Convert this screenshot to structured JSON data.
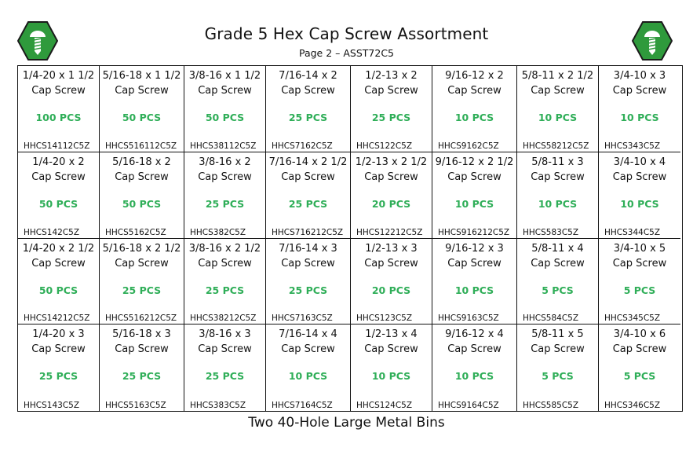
{
  "header": {
    "title": "Grade 5 Hex Cap Screw Assortment",
    "subtitle": "Page 2 – ASST72C5"
  },
  "footer": {
    "text": "Two 40-Hole Large Metal Bins"
  },
  "colors": {
    "logo_green": "#2f9a3c",
    "logo_dark": "#1b1b1b",
    "qty_green": "#2fae58"
  },
  "rows": [
    [
      {
        "size": "1/4-20 x 1 1/2",
        "type": "Cap Screw",
        "qty": "100 PCS",
        "part": "HHCS14112C5Z"
      },
      {
        "size": "5/16-18 x 1 1/2",
        "type": "Cap Screw",
        "qty": "50 PCS",
        "part": "HHCS516112C5Z"
      },
      {
        "size": "3/8-16 x 1 1/2",
        "type": "Cap Screw",
        "qty": "50 PCS",
        "part": "HHCS38112C5Z"
      },
      {
        "size": "7/16-14 x 2",
        "type": "Cap Screw",
        "qty": "25 PCS",
        "part": "HHCS7162C5Z"
      },
      {
        "size": "1/2-13 x 2",
        "type": "Cap Screw",
        "qty": "25 PCS",
        "part": "HHCS122C5Z"
      },
      {
        "size": "9/16-12 x 2",
        "type": "Cap Screw",
        "qty": "10 PCS",
        "part": "HHCS9162C5Z"
      },
      {
        "size": "5/8-11 x 2 1/2",
        "type": "Cap Screw",
        "qty": "10 PCS",
        "part": "HHCS58212C5Z"
      },
      {
        "size": "3/4-10 x 3",
        "type": "Cap Screw",
        "qty": "10 PCS",
        "part": "HHCS343C5Z"
      }
    ],
    [
      {
        "size": "1/4-20 x 2",
        "type": "Cap Screw",
        "qty": "50 PCS",
        "part": "HHCS142C5Z"
      },
      {
        "size": "5/16-18 x 2",
        "type": "Cap Screw",
        "qty": "50 PCS",
        "part": "HHCS5162C5Z"
      },
      {
        "size": "3/8-16 x 2",
        "type": "Cap Screw",
        "qty": "25 PCS",
        "part": "HHCS382C5Z"
      },
      {
        "size": "7/16-14 x 2 1/2",
        "type": "Cap Screw",
        "qty": "25 PCS",
        "part": "HHCS716212C5Z"
      },
      {
        "size": "1/2-13 x 2 1/2",
        "type": "Cap Screw",
        "qty": "20 PCS",
        "part": "HHCS12212C5Z"
      },
      {
        "size": "9/16-12 x 2 1/2",
        "type": "Cap Screw",
        "qty": "10 PCS",
        "part": "HHCS916212C5Z"
      },
      {
        "size": "5/8-11 x 3",
        "type": "Cap Screw",
        "qty": "10 PCS",
        "part": "HHCS583C5Z"
      },
      {
        "size": "3/4-10 x 4",
        "type": "Cap Screw",
        "qty": "10 PCS",
        "part": "HHCS344C5Z"
      }
    ],
    [
      {
        "size": "1/4-20 x 2 1/2",
        "type": "Cap Screw",
        "qty": "50 PCS",
        "part": "HHCS14212C5Z"
      },
      {
        "size": "5/16-18 x 2 1/2",
        "type": "Cap Screw",
        "qty": "25 PCS",
        "part": "HHCS516212C5Z"
      },
      {
        "size": "3/8-16 x 2 1/2",
        "type": "Cap Screw",
        "qty": "25 PCS",
        "part": "HHCS38212C5Z"
      },
      {
        "size": "7/16-14 x 3",
        "type": "Cap Screw",
        "qty": "25 PCS",
        "part": "HHCS7163C5Z"
      },
      {
        "size": "1/2-13 x 3",
        "type": "Cap Screw",
        "qty": "20 PCS",
        "part": "HHCS123C5Z"
      },
      {
        "size": "9/16-12 x 3",
        "type": "Cap Screw",
        "qty": "10 PCS",
        "part": "HHCS9163C5Z"
      },
      {
        "size": "5/8-11 x 4",
        "type": "Cap Screw",
        "qty": "5 PCS",
        "part": "HHCS584C5Z"
      },
      {
        "size": "3/4-10 x 5",
        "type": "Cap Screw",
        "qty": "5 PCS",
        "part": "HHCS345C5Z"
      }
    ],
    [
      {
        "size": "1/4-20 x 3",
        "type": "Cap Screw",
        "qty": "25 PCS",
        "part": "HHCS143C5Z"
      },
      {
        "size": "5/16-18 x 3",
        "type": "Cap Screw",
        "qty": "25 PCS",
        "part": "HHCS5163C5Z"
      },
      {
        "size": "3/8-16 x 3",
        "type": "Cap Screw",
        "qty": "25 PCS",
        "part": "HHCS383C5Z"
      },
      {
        "size": "7/16-14 x 4",
        "type": "Cap Screw",
        "qty": "10 PCS",
        "part": "HHCS7164C5Z"
      },
      {
        "size": "1/2-13 x 4",
        "type": "Cap Screw",
        "qty": "10 PCS",
        "part": "HHCS124C5Z"
      },
      {
        "size": "9/16-12 x 4",
        "type": "Cap Screw",
        "qty": "10 PCS",
        "part": "HHCS9164C5Z"
      },
      {
        "size": "5/8-11 x 5",
        "type": "Cap Screw",
        "qty": "5 PCS",
        "part": "HHCS585C5Z"
      },
      {
        "size": "3/4-10 x 6",
        "type": "Cap Screw",
        "qty": "5 PCS",
        "part": "HHCS346C5Z"
      }
    ]
  ]
}
